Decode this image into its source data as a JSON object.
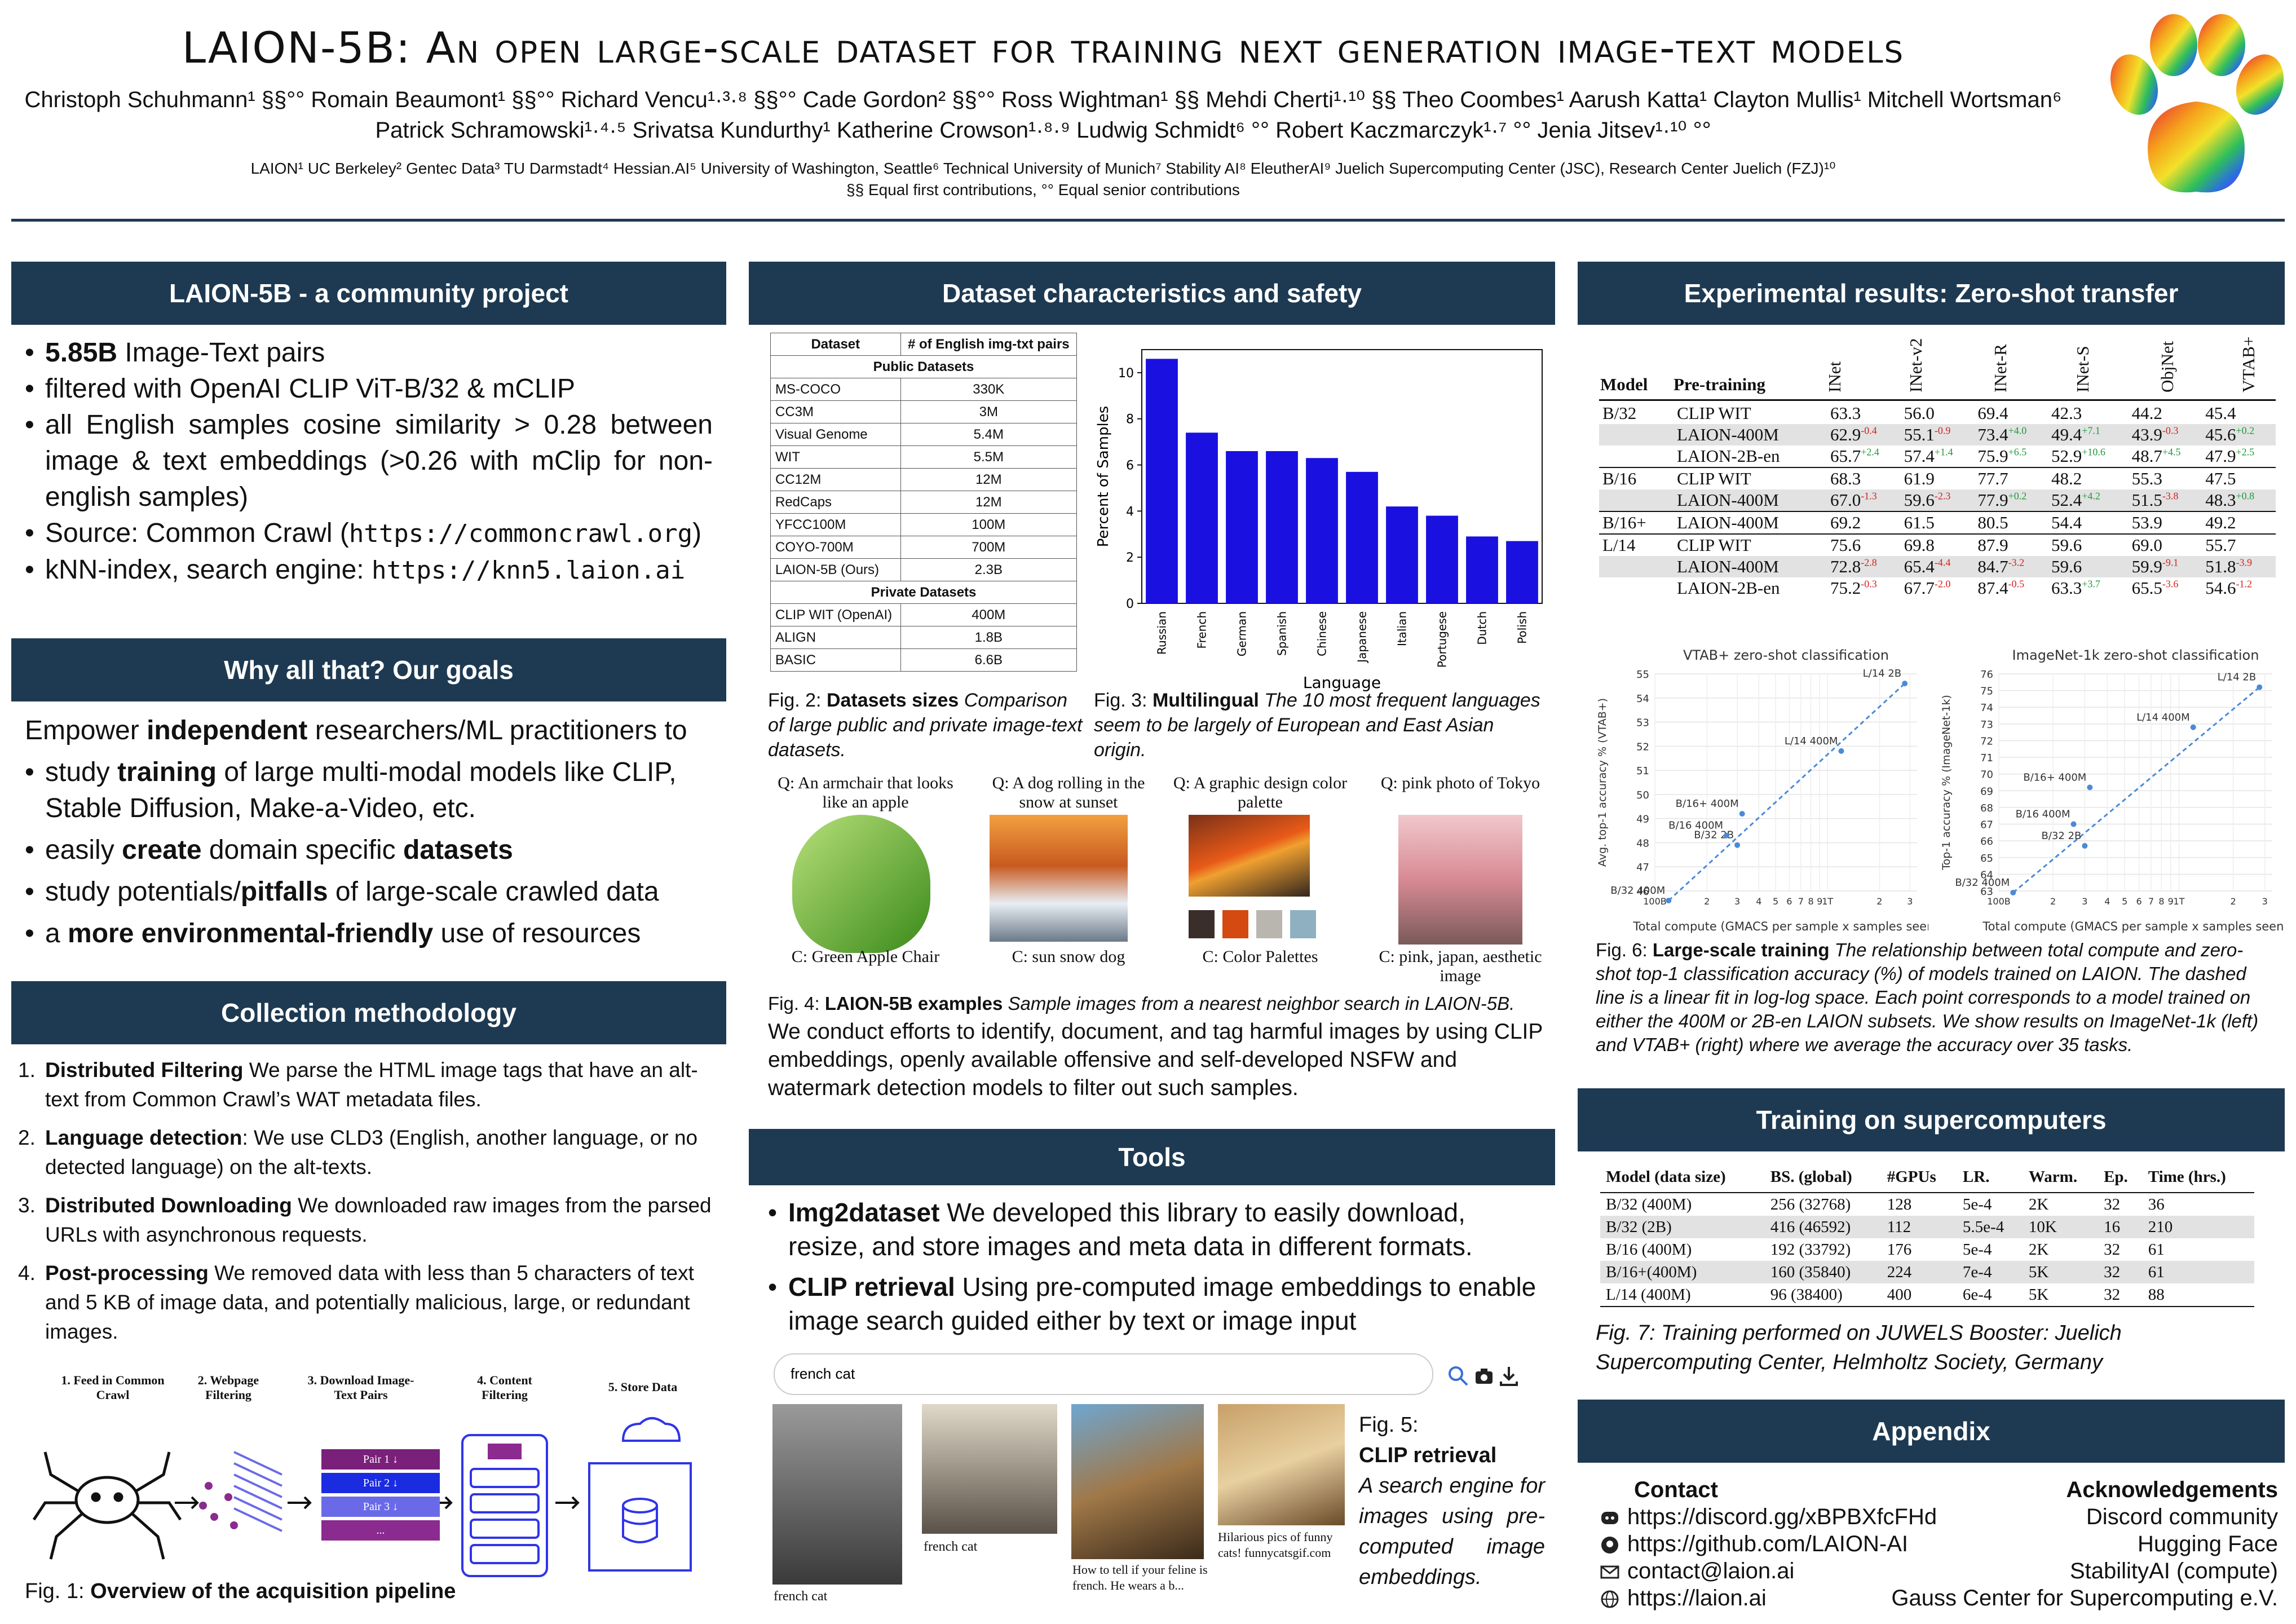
{
  "header": {
    "title": "LAION-5B: An open large-scale dataset for training next generation image-text models",
    "authors_line1": "Christoph Schuhmann¹ §§°° Romain Beaumont¹ §§°° Richard Vencu¹·³·⁸ §§°° Cade Gordon² §§°° Ross Wightman¹ §§ Mehdi Cherti¹·¹⁰ §§ Theo Coombes¹ Aarush Katta¹ Clayton Mullis¹ Mitchell Wortsman⁶",
    "authors_line2": "Patrick Schramowski¹·⁴·⁵ Srivatsa Kundurthy¹ Katherine Crowson¹·⁸·⁹ Ludwig Schmidt⁶ °° Robert Kaczmarczyk¹·⁷ °° Jenia Jitsev¹·¹⁰ °°",
    "affiliations": "LAION¹ UC Berkeley² Gentec Data³ TU Darmstadt⁴ Hessian.AI⁵ University of Washington, Seattle⁶ Technical University of Munich⁷ Stability AI⁸ EleutherAI⁹ Juelich Supercomputing Center (JSC), Research Center Juelich (FZJ)¹⁰",
    "contributions": "§§ Equal first contributions, °° Equal senior contributions"
  },
  "community": {
    "heading": "LAION-5B - a community project",
    "b1_bold": "5.85B",
    "b1_rest": " Image-Text pairs",
    "b2": "filtered with OpenAI CLIP ViT-B/32 & mCLIP",
    "b3": "all English samples cosine similarity > 0.28 between image & text embeddings (>0.26 with mClip for non-english samples)",
    "b4_text": "Source: Common Crawl (",
    "b4_url": "https://commoncrawl.org",
    "b4_close": ")",
    "b5_text": "kNN-index, search engine: ",
    "b5_url": "https://knn5.laion.ai"
  },
  "goals": {
    "heading": "Why all that? Our goals",
    "intro_a": "Empower ",
    "intro_b": "independent",
    "intro_c": " researchers/ML practitioners to",
    "g1_a": "study ",
    "g1_b": "training",
    "g1_c": " of large multi-modal models like CLIP, Stable Diffusion, Make-a-Video, etc.",
    "g2_a": "easily ",
    "g2_b": "create",
    "g2_c": " domain specific ",
    "g2_d": "datasets",
    "g3_a": "study potentials/",
    "g3_b": "pitfalls",
    "g3_c": " of large-scale crawled data",
    "g4_a": "a ",
    "g4_b": "more environmental-friendly",
    "g4_c": " use of resources"
  },
  "method": {
    "heading": "Collection methodology",
    "items": [
      {
        "num": "1.",
        "bold": "Distributed Filtering",
        "text": " We parse the HTML image tags that have an alt-text from Common Crawl’s WAT metadata files."
      },
      {
        "num": "2.",
        "bold": "Language detection",
        "text": ": We use CLD3 (English, another language, or no detected language) on the alt-texts."
      },
      {
        "num": "3.",
        "bold": "Distributed Downloading",
        "text": " We downloaded raw images from the parsed URLs with asynchronous requests."
      },
      {
        "num": "4.",
        "bold": "Post-processing",
        "text": " We removed data with less than 5 characters of text and 5 KB of image data, and potentially malicious, large, or redundant images."
      }
    ],
    "pipeline_steps": [
      "1. Feed in Common Crawl",
      "2. Webpage Filtering",
      "3. Download Image-Text Pairs",
      "4. Content Filtering",
      "5. Store Data"
    ],
    "pairs": [
      "Pair 1 ↓",
      "Pair 2 ↓",
      "Pair 3 ↓",
      "..."
    ],
    "fig1_prefix": "Fig. 1: ",
    "fig1_bold": "Overview of the acquisition pipeline"
  },
  "dataset": {
    "heading": "Dataset characteristics and safety",
    "col1": "Dataset",
    "col2": "# of English img-txt pairs",
    "public_label": "Public Datasets",
    "public": [
      [
        "MS-COCO",
        "330K"
      ],
      [
        "CC3M",
        "3M"
      ],
      [
        "Visual Genome",
        "5.4M"
      ],
      [
        "WIT",
        "5.5M"
      ],
      [
        "CC12M",
        "12M"
      ],
      [
        "RedCaps",
        "12M"
      ],
      [
        "YFCC100M",
        "100M"
      ],
      [
        "COYO-700M",
        "700M"
      ],
      [
        "LAION-5B (Ours)",
        "2.3B"
      ]
    ],
    "private_label": "Private Datasets",
    "private": [
      [
        "CLIP WIT (OpenAI)",
        "400M"
      ],
      [
        "ALIGN",
        "1.8B"
      ],
      [
        "BASIC",
        "6.6B"
      ]
    ],
    "fig2_prefix": "Fig. 2: ",
    "fig2_bold": "Datasets sizes",
    "fig2_rest": " Comparison of large public and private image-text datasets.",
    "fig3_prefix": "Fig. 3: ",
    "fig3_bold": "Multilingual",
    "fig3_rest": " The 10 most frequent languages seem to be largely of European and East Asian origin.",
    "examples": [
      {
        "q": "Q: An armchair that looks like an apple",
        "c": "C: Green Apple Chair"
      },
      {
        "q": "Q: A dog rolling in the snow at sunset",
        "c": "C: sun snow dog"
      },
      {
        "q": "Q: A graphic design color palette",
        "c": "C: Color Palettes"
      },
      {
        "q": "Q: pink photo of Tokyo",
        "c": "C: pink, japan, aesthetic image"
      }
    ],
    "palette_colors": [
      "#3a2e2a",
      "#d44a10",
      "#b9b6b0",
      "#8eb0c0"
    ],
    "fig4_prefix": "Fig. 4: ",
    "fig4_bold": "LAION-5B examples",
    "fig4_rest": " Sample images from a nearest neighbor search in LAION-5B.",
    "safety": "We conduct efforts to identify, document, and tag harmful images by using CLIP embeddings, openly available offensive and self-developed NSFW and watermark detection models to filter out such samples."
  },
  "tools": {
    "heading": "Tools",
    "t1_bold": "Img2dataset",
    "t1_rest": " We developed this library to easily download, resize, and store images and meta data in different formats.",
    "t2_bold": "CLIP retrieval",
    "t2_rest": " Using pre-computed image embeddings to enable image search guided either by text or image input",
    "search_value": "french cat",
    "results": [
      "french cat",
      "french cat",
      "How to tell if your feline is french. He wears a b...",
      "Hilarious pics of funny cats! funnycatsgif.com"
    ],
    "fig5_prefix": "Fig. 5:",
    "fig5_bold": "CLIP retrieval",
    "fig5_rest": "A search engine for images using pre-computed image embeddings."
  },
  "zeroshot": {
    "heading": "Experimental results: Zero-shot transfer",
    "col_model": "Model",
    "col_pre": "Pre-training",
    "metrics": [
      "INet",
      "INet-v2",
      "INet-R",
      "INet-S",
      "ObjNet",
      "VTAB+"
    ],
    "groups": [
      {
        "model": "B/32",
        "rows": [
          {
            "pre": "CLIP WIT",
            "v": [
              "63.3",
              "56.0",
              "69.4",
              "42.3",
              "44.2",
              "45.4"
            ],
            "d": [
              "",
              "",
              "",
              "",
              "",
              ""
            ]
          },
          {
            "pre": "LAION-400M",
            "v": [
              "62.9",
              "55.1",
              "73.4",
              "49.4",
              "43.9",
              "45.6"
            ],
            "d": [
              "-0.4",
              "-0.9",
              "+4.0",
              "+7.1",
              "-0.3",
              "+0.2"
            ]
          },
          {
            "pre": "LAION-2B-en",
            "v": [
              "65.7",
              "57.4",
              "75.9",
              "52.9",
              "48.7",
              "47.9"
            ],
            "d": [
              "+2.4",
              "+1.4",
              "+6.5",
              "+10.6",
              "+4.5",
              "+2.5"
            ]
          }
        ]
      },
      {
        "model": "B/16",
        "rows": [
          {
            "pre": "CLIP WIT",
            "v": [
              "68.3",
              "61.9",
              "77.7",
              "48.2",
              "55.3",
              "47.5"
            ],
            "d": [
              "",
              "",
              "",
              "",
              "",
              ""
            ]
          },
          {
            "pre": "LAION-400M",
            "v": [
              "67.0",
              "59.6",
              "77.9",
              "52.4",
              "51.5",
              "48.3"
            ],
            "d": [
              "-1.3",
              "-2.3",
              "+0.2",
              "+4.2",
              "-3.8",
              "+0.8"
            ]
          }
        ]
      },
      {
        "model": "B/16+",
        "rows": [
          {
            "pre": "LAION-400M",
            "v": [
              "69.2",
              "61.5",
              "80.5",
              "54.4",
              "53.9",
              "49.2"
            ],
            "d": [
              "",
              "",
              "",
              "",
              "",
              ""
            ]
          }
        ]
      },
      {
        "model": "L/14",
        "rows": [
          {
            "pre": "CLIP WIT",
            "v": [
              "75.6",
              "69.8",
              "87.9",
              "59.6",
              "69.0",
              "55.7"
            ],
            "d": [
              "",
              "",
              "",
              "",
              "",
              ""
            ]
          },
          {
            "pre": "LAION-400M",
            "v": [
              "72.8",
              "65.4",
              "84.7",
              "59.6",
              "59.9",
              "51.8"
            ],
            "d": [
              "-2.8",
              "-4.4",
              "-3.2",
              "",
              "-9.1",
              "-3.9"
            ]
          },
          {
            "pre": "LAION-2B-en",
            "v": [
              "75.2",
              "67.7",
              "87.4",
              "63.3",
              "65.5",
              "54.6"
            ],
            "d": [
              "-0.3",
              "-2.0",
              "-0.5",
              "+3.7",
              "-3.6",
              "-1.2"
            ]
          }
        ]
      }
    ],
    "fig6_prefix": "Fig. 6: ",
    "fig6_bold": "Large-scale training",
    "fig6_rest": " The relationship between total compute and zero-shot top-1 classification accuracy (%) of models trained on LAION. The dashed line is a linear fit in log-log space. Each point corresponds to a model trained on either the 400M or 2B-en LAION subsets. We show results on ImageNet-1k (left) and VTAB+ (right) where we average the accuracy over 35 tasks."
  },
  "supercomputers": {
    "heading": "Training on supercomputers",
    "columns": [
      "Model (data size)",
      "BS. (global)",
      "#GPUs",
      "LR.",
      "Warm.",
      "Ep.",
      "Time (hrs.)"
    ],
    "rows": [
      [
        "B/32 (400M)",
        "256 (32768)",
        "128",
        "5e-4",
        "2K",
        "32",
        "36"
      ],
      [
        "B/32 (2B)",
        "416 (46592)",
        "112",
        "5.5e-4",
        "10K",
        "16",
        "210"
      ],
      [
        "B/16 (400M)",
        "192 (33792)",
        "176",
        "5e-4",
        "2K",
        "32",
        "61"
      ],
      [
        "B/16+(400M)",
        "160 (35840)",
        "224",
        "7e-4",
        "5K",
        "32",
        "61"
      ],
      [
        "L/14 (400M)",
        "96 (38400)",
        "400",
        "6e-4",
        "5K",
        "32",
        "88"
      ]
    ],
    "fig7": "Fig. 7: Training performed on JUWELS Booster: Juelich Supercomputing Center, Helmholtz Society, Germany"
  },
  "appendix": {
    "heading": "Appendix",
    "contact_title": "Contact",
    "contacts": [
      {
        "icon": "discord-icon",
        "text": "https://discord.gg/xBPBXfcFHd"
      },
      {
        "icon": "github-icon",
        "text": "https://github.com/LAION-AI"
      },
      {
        "icon": "mail-icon",
        "text": "contact@laion.ai"
      },
      {
        "icon": "globe-icon",
        "text": "https://laion.ai"
      }
    ],
    "ack_title": "Acknowledgements",
    "acks": [
      "Discord community",
      "Hugging Face",
      "StabilityAI (compute)",
      "Gauss Center for Supercomputing e.V."
    ]
  },
  "chart_data": [
    {
      "type": "bar",
      "xlabel": "Language",
      "ylabel": "Percent of Samples",
      "categories": [
        "Russian",
        "French",
        "German",
        "Spanish",
        "Chinese",
        "Japanese",
        "Italian",
        "Portugese",
        "Dutch",
        "Polish"
      ],
      "values": [
        10.6,
        7.4,
        6.6,
        6.6,
        6.3,
        5.7,
        4.2,
        3.8,
        2.9,
        2.7
      ],
      "ylim": [
        0,
        11
      ],
      "yticks": [
        "0",
        "2",
        "4",
        "6",
        "8",
        "10"
      ],
      "color": "#1a10e0"
    },
    {
      "type": "scatter",
      "title": "VTAB+ zero-shot classification",
      "xlabel": "Total compute (GMACS per sample x samples seen)",
      "ylabel": "Avg. top-1 accuracy % (VTAB+)",
      "yticks": [
        "46",
        "47",
        "48",
        "49",
        "50",
        "51",
        "52",
        "53",
        "54",
        "55"
      ],
      "xtick_labels": [
        "100B",
        "2",
        "3",
        "4",
        "5",
        "6",
        "7",
        "8",
        "9",
        "1T",
        "2",
        "3"
      ],
      "points": [
        {
          "label": "B/32 400M",
          "x": 0.12,
          "y": 45.6
        },
        {
          "label": "B/32 2B",
          "x": 0.3,
          "y": 47.9
        },
        {
          "label": "B/16 400M",
          "x": 0.26,
          "y": 48.3
        },
        {
          "label": "B/16+ 400M",
          "x": 0.32,
          "y": 49.2
        },
        {
          "label": "L/14 400M",
          "x": 1.2,
          "y": 51.8
        },
        {
          "label": "L/14 2B",
          "x": 2.8,
          "y": 54.6
        }
      ]
    },
    {
      "type": "scatter",
      "title": "ImageNet-1k zero-shot classification",
      "xlabel": "Total compute (GMACS per sample x samples seen)",
      "ylabel": "Top-1 accuracy % (ImageNet-1k)",
      "yticks": [
        "63",
        "64",
        "65",
        "66",
        "67",
        "68",
        "69",
        "70",
        "71",
        "72",
        "73",
        "74",
        "75",
        "76"
      ],
      "xtick_labels": [
        "100B",
        "2",
        "3",
        "4",
        "5",
        "6",
        "7",
        "8",
        "9",
        "1T",
        "2",
        "3"
      ],
      "points": [
        {
          "label": "B/32 400M",
          "x": 0.12,
          "y": 62.9
        },
        {
          "label": "B/32 2B",
          "x": 0.3,
          "y": 65.7
        },
        {
          "label": "B/16 400M",
          "x": 0.26,
          "y": 67.0
        },
        {
          "label": "B/16+ 400M",
          "x": 0.32,
          "y": 69.2
        },
        {
          "label": "L/14 400M",
          "x": 1.2,
          "y": 72.8
        },
        {
          "label": "L/14 2B",
          "x": 2.8,
          "y": 75.2
        }
      ]
    }
  ]
}
